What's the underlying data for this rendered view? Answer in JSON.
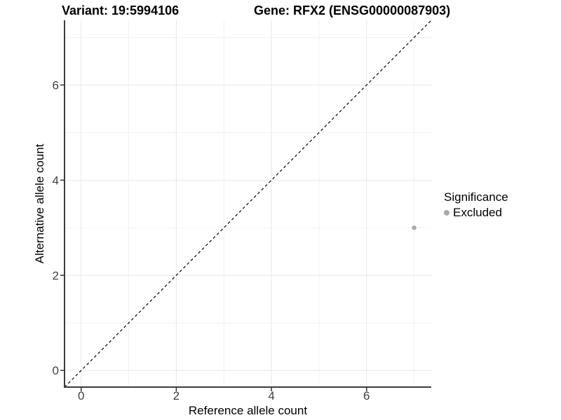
{
  "chart_data": {
    "type": "scatter",
    "titles": {
      "left": "Variant: 19:5994106",
      "right": "Gene: RFX2 (ENSG00000087903)"
    },
    "xlabel": "Reference allele count",
    "ylabel": "Alternative allele count",
    "xlim": [
      -0.35,
      7.36
    ],
    "ylim": [
      -0.35,
      7.36
    ],
    "xticks": [
      0,
      2,
      4,
      6
    ],
    "yticks": [
      0,
      2,
      4,
      6
    ],
    "minor_gridlines": [
      1,
      3,
      5,
      7
    ],
    "grid": true,
    "points": [
      {
        "x": 7,
        "y": 3,
        "series": "Excluded"
      }
    ],
    "reference_line": {
      "type": "identity",
      "style": "dashed",
      "color": "#000000"
    },
    "legend": {
      "title": "Significance",
      "position": "right",
      "items": [
        {
          "label": "Excluded",
          "color": "#a9a9a9"
        }
      ]
    },
    "colors": {
      "point": "#a9a9a9",
      "grid_major": "#e7e7e7",
      "grid_minor": "#f1f1f1",
      "axis_line": "#3c3c3c",
      "tick_mark": "#333333",
      "tick_label": "#404040"
    }
  }
}
